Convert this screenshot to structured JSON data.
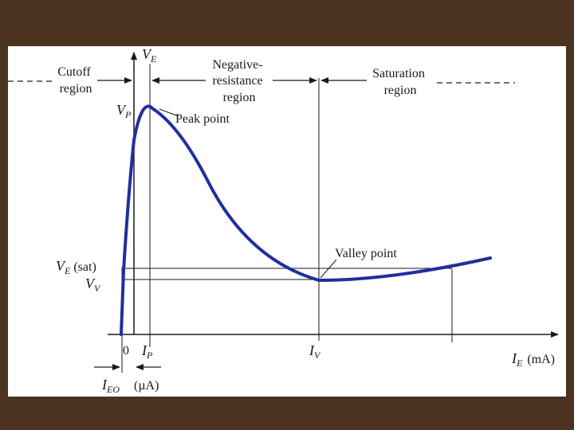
{
  "colors": {
    "background": "#4a341f",
    "curve": "#1f2f9e",
    "ink": "#1a1a1a"
  },
  "axes": {
    "y_label_main": "V",
    "y_label_sub": "E",
    "x_label_main": "I",
    "x_label_sub": "E",
    "x_unit": "(mA)",
    "origin": "0",
    "micro_unit": "(µA)"
  },
  "regions": {
    "cutoff": [
      "Cutoff",
      "region"
    ],
    "negative": [
      "Negative-",
      "resistance",
      "region"
    ],
    "saturation": [
      "Saturation",
      "region"
    ]
  },
  "levels": {
    "vp_main": "V",
    "vp_sub": "P",
    "vesat_main": "V",
    "vesat_sub": "E",
    "vesat_suffix": "(sat)",
    "vv_main": "V",
    "vv_sub": "V"
  },
  "currents": {
    "ip_main": "I",
    "ip_sub": "P",
    "iv_main": "I",
    "iv_sub": "V",
    "ieo_main": "I",
    "ieo_sub": "EO"
  },
  "annotations": {
    "peak": "Peak point",
    "valley": "Valley point"
  }
}
